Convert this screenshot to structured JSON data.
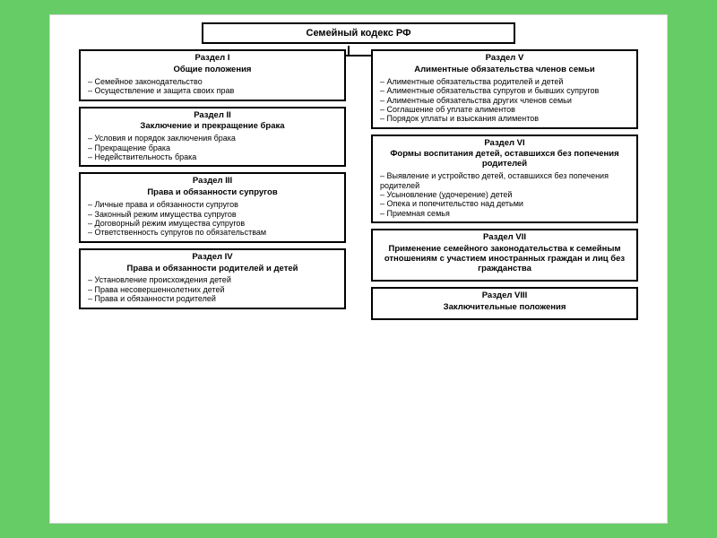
{
  "colors": {
    "page_bg": "#ffffff",
    "outer_bg": "#66cc66",
    "border": "#000000",
    "text": "#000000"
  },
  "title": "Семейный кодекс РФ",
  "left": [
    {
      "heading": "Раздел I",
      "subheading": "Общие положения",
      "items": [
        "Семейное законодательство",
        "Осуществление и защита своих прав"
      ]
    },
    {
      "heading": "Раздел II",
      "subheading": "Заключение и прекращение брака",
      "items": [
        "Условия и порядок заключения брака",
        "Прекращение брака",
        "Недействительность брака"
      ]
    },
    {
      "heading": "Раздел III",
      "subheading": "Права и обязанности супругов",
      "items": [
        "Личные права и обязанности супругов",
        "Законный режим имущества супругов",
        "Договорный режим имущества супругов",
        "Ответственность супругов по обязательствам"
      ]
    },
    {
      "heading": "Раздел IV",
      "subheading": "Права и обязанности родителей и детей",
      "items": [
        "Установление происхождения детей",
        "Права несовершеннолетних детей",
        "Права и обязанности родителей"
      ]
    }
  ],
  "right": [
    {
      "heading": "Раздел V",
      "subheading": "Алиментные обязательства членов семьи",
      "items": [
        "Алиментные обязательства родителей и детей",
        "Алиментные обязательства супругов и бывших супругов",
        "Алиментные обязательства других членов семьи",
        "Соглашение об уплате алиментов",
        "Порядок уплаты и взыскания алиментов"
      ]
    },
    {
      "heading": "Раздел VI",
      "subheading": "Формы воспитания детей, оставшихся без попечения родителей",
      "items": [
        "Выявление и устройство детей, оставшихся без попечения родителей",
        "Усыновление (удочерение) детей",
        "Опека и попечительство над детьми",
        "Приемная семья"
      ]
    },
    {
      "heading": "Раздел VII",
      "subheading": "Применение семейного законодательства к семейным отношениям с участием иностранных граждан и лиц без гражданства",
      "items": []
    },
    {
      "heading": "Раздел VIII",
      "subheading": "Заключительные положения",
      "items": []
    }
  ]
}
